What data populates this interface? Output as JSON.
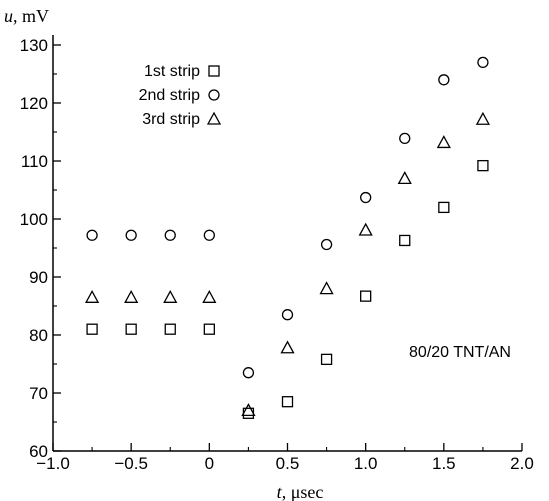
{
  "chart_data": {
    "type": "scatter",
    "title": "",
    "xlabel": {
      "var": "t",
      "unit": ", μsec"
    },
    "ylabel": {
      "var": "u",
      "unit": ", mV"
    },
    "xlim": [
      -1.0,
      2.0
    ],
    "ylim": [
      60,
      130
    ],
    "xticks": [
      -1.0,
      -0.5,
      0,
      0.5,
      1.0,
      1.5,
      2.0
    ],
    "xtick_labels": [
      "−1.0",
      "−0.5",
      "0",
      "0.5",
      "1.0",
      "1.5",
      "2.0"
    ],
    "yticks": [
      60,
      70,
      80,
      90,
      100,
      110,
      120,
      130
    ],
    "ytick_labels": [
      "60",
      "70",
      "80",
      "90",
      "100",
      "110",
      "120",
      "130"
    ],
    "grid": false,
    "legend_position": "top-left",
    "annotation": "80/20 TNT/AN",
    "series": [
      {
        "name": "1st strip",
        "marker": "square",
        "x": [
          -0.75,
          -0.5,
          -0.25,
          0,
          0.25,
          0.5,
          0.75,
          1.0,
          1.25,
          1.5,
          1.75
        ],
        "y": [
          81,
          81,
          81,
          81,
          66.5,
          68.5,
          75.8,
          86.7,
          96.3,
          102,
          109.2
        ]
      },
      {
        "name": "2nd strip",
        "marker": "circle",
        "x": [
          -0.75,
          -0.5,
          -0.25,
          0,
          0.25,
          0.5,
          0.75,
          1.0,
          1.25,
          1.5,
          1.75
        ],
        "y": [
          97.2,
          97.2,
          97.2,
          97.2,
          73.5,
          83.5,
          95.6,
          103.7,
          113.9,
          124,
          127
        ]
      },
      {
        "name": "3rd strip",
        "marker": "triangle",
        "x": [
          -0.75,
          -0.5,
          -0.25,
          0,
          0.25,
          0.5,
          0.75,
          1.0,
          1.25,
          1.5,
          1.75
        ],
        "y": [
          86.5,
          86.5,
          86.5,
          86.5,
          67,
          77.8,
          88,
          98.1,
          107,
          113.2,
          117.2
        ]
      }
    ]
  }
}
